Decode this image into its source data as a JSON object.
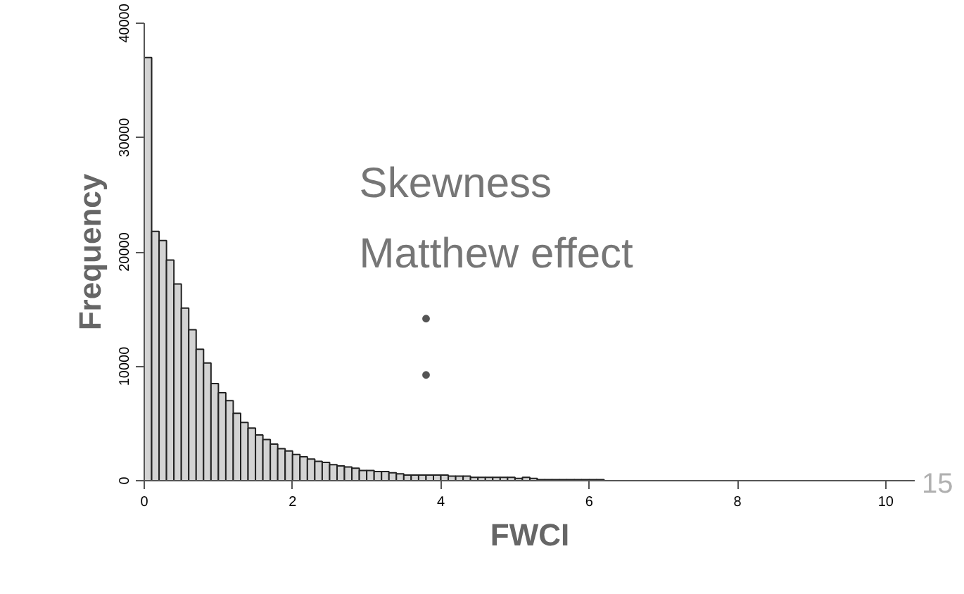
{
  "chart_data": {
    "type": "histogram",
    "xlabel": "FWCI",
    "ylabel": "Frequency",
    "annotations": [
      "Skewness",
      "Matthew effect",
      "•",
      "•",
      "15"
    ],
    "color": "#d3d3d3",
    "bins": [
      0.0,
      0.1,
      0.2,
      0.3,
      0.4,
      0.5,
      0.6,
      0.7,
      0.8,
      0.9,
      1.0,
      1.1,
      1.2,
      1.3,
      1.4,
      1.5,
      1.6,
      1.7,
      1.8,
      1.9,
      2.0,
      2.1,
      2.2,
      2.3,
      2.4,
      2.5,
      2.6,
      2.7,
      2.8,
      2.9,
      3.0,
      3.1,
      3.2,
      3.3,
      3.4,
      3.5,
      3.6,
      3.7,
      3.8,
      3.9,
      4.0,
      4.1,
      4.2,
      4.3,
      4.4,
      4.5,
      4.6,
      4.7,
      4.8,
      4.9,
      5.0,
      5.1,
      5.2,
      5.3,
      5.4,
      5.5,
      5.6,
      5.7,
      5.8,
      5.9,
      6.0,
      6.1,
      6.2,
      6.3,
      6.4,
      6.5,
      6.6,
      6.7,
      6.8,
      6.9,
      7.0,
      7.1,
      7.2,
      7.3,
      7.4,
      7.5,
      7.6,
      7.7,
      7.8,
      7.9,
      8.0,
      8.1,
      8.2,
      8.3,
      8.4,
      8.5,
      8.6,
      8.7,
      8.8,
      8.9,
      9.0,
      9.1,
      9.2,
      9.3,
      9.4,
      9.5,
      9.6,
      9.7,
      9.8,
      9.9,
      10.0,
      10.1,
      10.2,
      10.3,
      10.4
    ],
    "values": [
      37000,
      21800,
      21000,
      19300,
      17200,
      15100,
      13200,
      11500,
      10300,
      8500,
      7700,
      7000,
      5900,
      5100,
      4600,
      4000,
      3600,
      3200,
      2800,
      2600,
      2300,
      2100,
      1900,
      1700,
      1600,
      1400,
      1300,
      1200,
      1100,
      900,
      900,
      800,
      800,
      700,
      600,
      500,
      500,
      500,
      500,
      500,
      500,
      400,
      400,
      400,
      300,
      300,
      300,
      300,
      300,
      300,
      200,
      300,
      200,
      100,
      100,
      100,
      100,
      100,
      100,
      100,
      100,
      100,
      0,
      0,
      0,
      0,
      0,
      0,
      0,
      0,
      0,
      0,
      0,
      0,
      0,
      0,
      0,
      0,
      0,
      0,
      0,
      0,
      0,
      0,
      0,
      0,
      0,
      0,
      0,
      0,
      0,
      0,
      0,
      0,
      0,
      0,
      0,
      0,
      0,
      0,
      0,
      0,
      0,
      0
    ],
    "xlim": [
      0,
      10.4
    ],
    "ylim": [
      0,
      40000
    ],
    "xticks": [
      0,
      2,
      4,
      6,
      8,
      10
    ],
    "yticks": [
      0,
      10000,
      20000,
      30000,
      40000
    ]
  }
}
